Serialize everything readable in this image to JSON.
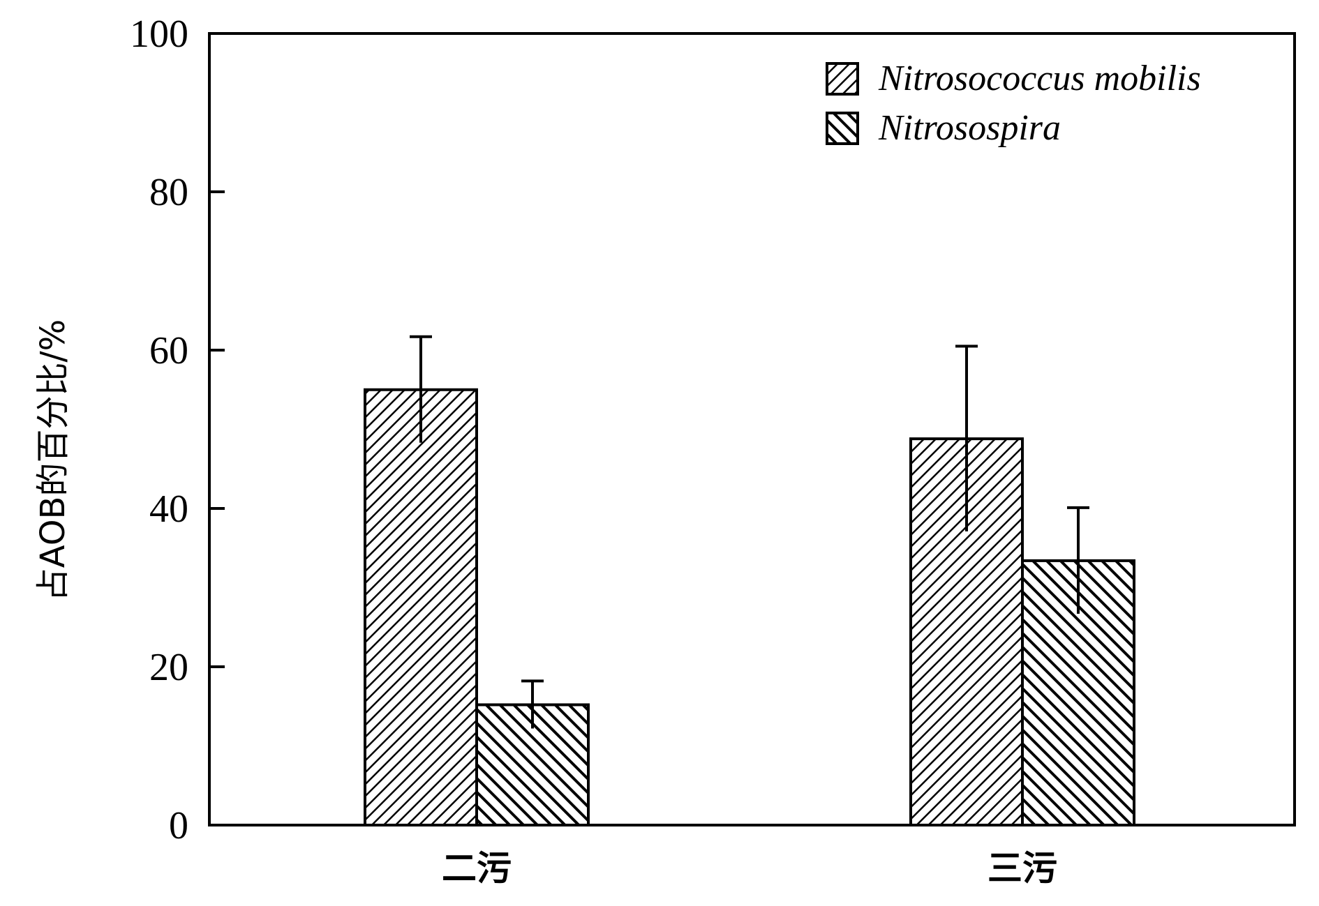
{
  "chart_data": {
    "type": "bar",
    "categories": [
      "二污",
      "三污"
    ],
    "series": [
      {
        "name": "Nitrosococcus mobilis",
        "values": [
          55,
          48.8
        ],
        "errors": [
          6.7,
          11.7
        ],
        "pattern": "diag-right"
      },
      {
        "name": "Nitrosospira",
        "values": [
          15.2,
          33.4
        ],
        "errors": [
          3.0,
          6.7
        ],
        "pattern": "diag-left"
      }
    ],
    "xlabel": "",
    "ylabel": "占AOB的百分比/%",
    "ylim": [
      0,
      100
    ],
    "yticks": [
      0,
      20,
      40,
      60,
      80,
      100
    ],
    "grid": false,
    "legend_position": "top-right"
  }
}
